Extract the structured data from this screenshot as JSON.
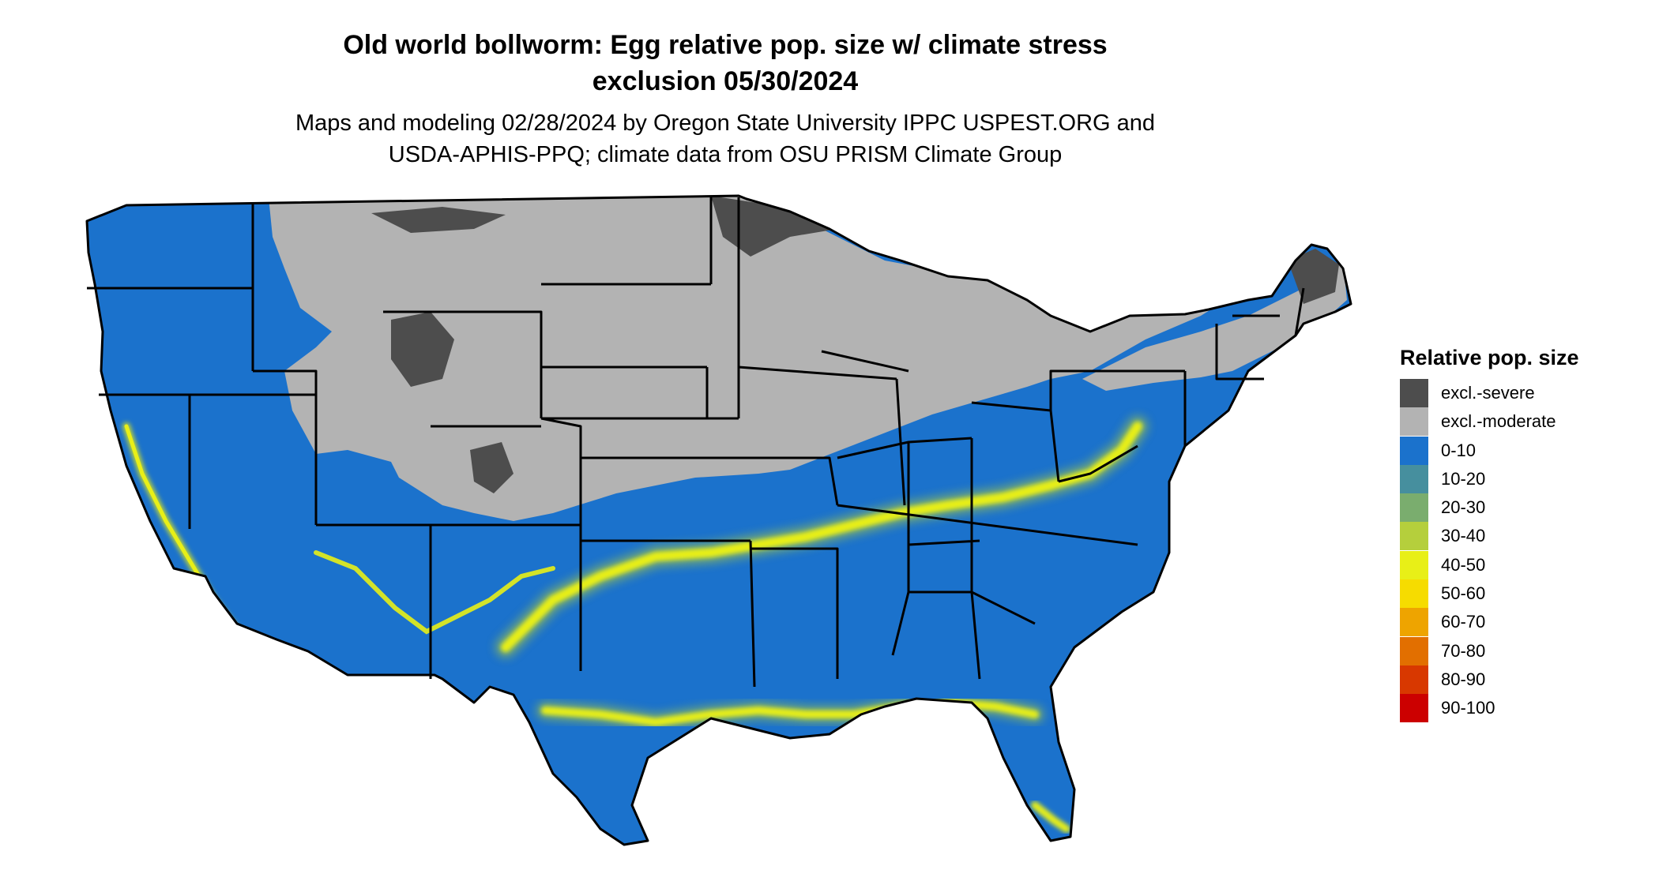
{
  "title": {
    "line1": "Old world bollworm: Egg relative pop. size w/ climate stress",
    "line2": "exclusion 05/30/2024"
  },
  "subtitle": {
    "line1": "Maps and modeling 02/28/2024 by Oregon State University IPPC USPEST.ORG and",
    "line2": "USDA-APHIS-PPQ; climate data from OSU PRISM Climate Group"
  },
  "legend": {
    "title": "Relative pop. size",
    "items": [
      {
        "label": "excl.-severe",
        "color": "#4d4d4d"
      },
      {
        "label": "excl.-moderate",
        "color": "#b3b3b3"
      },
      {
        "label": "0-10",
        "color": "#1b72cc"
      },
      {
        "label": "10-20",
        "color": "#468f9e"
      },
      {
        "label": "20-30",
        "color": "#7aad6e"
      },
      {
        "label": "30-40",
        "color": "#b5cf3c"
      },
      {
        "label": "40-50",
        "color": "#e8ef17"
      },
      {
        "label": "50-60",
        "color": "#f6dc00"
      },
      {
        "label": "60-70",
        "color": "#eea400"
      },
      {
        "label": "70-80",
        "color": "#e26f00"
      },
      {
        "label": "80-90",
        "color": "#d83800"
      },
      {
        "label": "90-100",
        "color": "#cc0000"
      }
    ]
  },
  "map": {
    "region": "Contiguous United States",
    "colors": {
      "water": "#ffffff",
      "border": "#000000"
    }
  }
}
